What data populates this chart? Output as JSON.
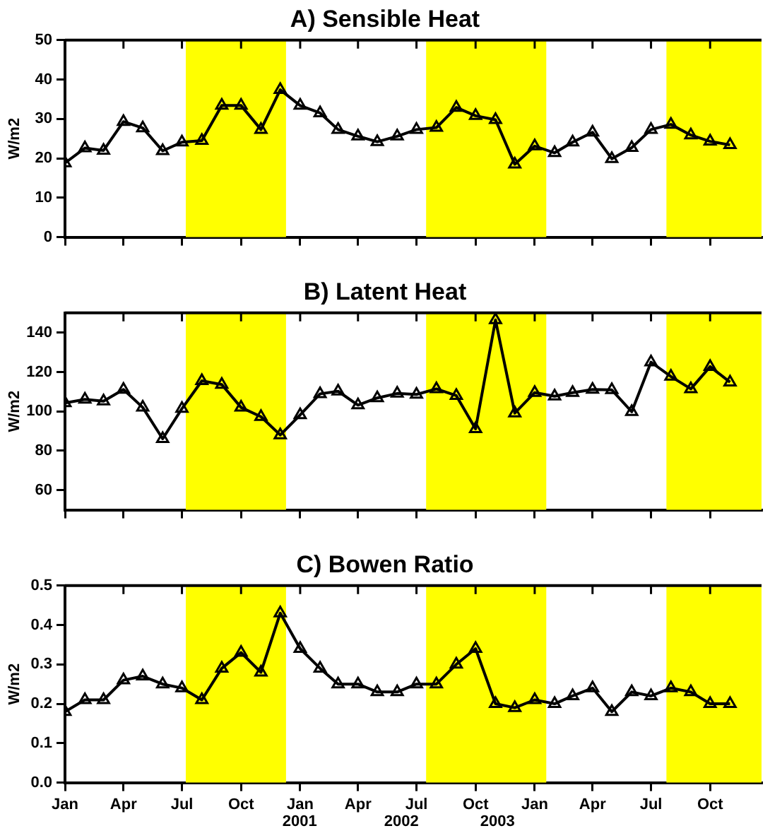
{
  "chart_data": [
    {
      "type": "line",
      "title": "A) Sensible Heat",
      "ylabel": "W/m2",
      "color": "#000000",
      "marker": "triangle",
      "line_style": "solid",
      "grid": false,
      "legend": false,
      "tick_labels": "y",
      "x": [
        "2000-01",
        "2000-02",
        "2000-03",
        "2000-04",
        "2000-05",
        "2000-06",
        "2000-07",
        "2000-08",
        "2000-09",
        "2000-10",
        "2000-11",
        "2000-12",
        "2001-01",
        "2001-02",
        "2001-03",
        "2001-04",
        "2001-05",
        "2001-06",
        "2001-07",
        "2001-08",
        "2001-09",
        "2001-10",
        "2001-11",
        "2001-12",
        "2002-01",
        "2002-02",
        "2002-03",
        "2002-04",
        "2002-05",
        "2002-06",
        "2002-07",
        "2002-08",
        "2002-09",
        "2002-10",
        "2002-11"
      ],
      "values": [
        18.8,
        22.6,
        22.0,
        29.3,
        27.7,
        21.9,
        24.1,
        24.5,
        33.4,
        33.4,
        27.3,
        37.4,
        33.4,
        31.5,
        27.3,
        25.6,
        24.2,
        25.6,
        27.3,
        27.8,
        32.9,
        30.8,
        29.8,
        18.5,
        23.1,
        21.4,
        24.1,
        26.6,
        19.9,
        22.7,
        27.3,
        28.6,
        25.9,
        24.3,
        23.4
      ],
      "xlim": [
        "2000-01",
        "2002-12-20"
      ],
      "xticks": [
        {
          "value": "2000-01",
          "label": null
        },
        {
          "value": "2000-04",
          "label": null
        },
        {
          "value": "2000-07",
          "label": null
        },
        {
          "value": "2000-10",
          "label": null
        },
        {
          "value": "2001-01",
          "label": null
        },
        {
          "value": "2001-04",
          "label": null
        },
        {
          "value": "2001-07",
          "label": null
        },
        {
          "value": "2001-10",
          "label": null
        },
        {
          "value": "2002-01",
          "label": null
        },
        {
          "value": "2002-04",
          "label": null
        },
        {
          "value": "2002-07",
          "label": null
        },
        {
          "value": "2002-10",
          "label": null
        }
      ],
      "ylim": [
        0,
        50
      ],
      "yticks": [
        0,
        10,
        20,
        30,
        40,
        50
      ],
      "bands": [
        {
          "axis": "x",
          "from": "2000-07-07",
          "to": "2000-12-10",
          "color": "#ffff00"
        },
        {
          "axis": "x",
          "from": "2001-07-16",
          "to": "2002-01-19",
          "color": "#ffff00"
        },
        {
          "axis": "x",
          "from": "2002-07-25",
          "to": "2002-12-20",
          "color": "#ffff00"
        }
      ]
    },
    {
      "type": "line",
      "title": "B) Latent Heat",
      "ylabel": "W/m2",
      "color": "#000000",
      "marker": "triangle",
      "line_style": "solid",
      "grid": false,
      "legend": false,
      "tick_labels": "y",
      "x": [
        "2000-01",
        "2000-02",
        "2000-03",
        "2000-04",
        "2000-05",
        "2000-06",
        "2000-07",
        "2000-08",
        "2000-09",
        "2000-10",
        "2000-11",
        "2000-12",
        "2001-01",
        "2001-02",
        "2001-03",
        "2001-04",
        "2001-05",
        "2001-06",
        "2001-07",
        "2001-08",
        "2001-09",
        "2001-10",
        "2001-11",
        "2001-12",
        "2002-01",
        "2002-02",
        "2002-03",
        "2002-04",
        "2002-05",
        "2002-06",
        "2002-07",
        "2002-08",
        "2002-09",
        "2002-10",
        "2002-11"
      ],
      "values": [
        104.3,
        106.1,
        105.2,
        111.1,
        102.0,
        86.1,
        101.4,
        115.5,
        113.6,
        102.0,
        97.3,
        88.0,
        98.2,
        108.9,
        110.2,
        103.2,
        106.8,
        109.1,
        108.6,
        111.4,
        108.0,
        91.1,
        146.4,
        99.1,
        109.5,
        107.7,
        109.5,
        111.1,
        110.9,
        99.8,
        125.0,
        117.7,
        111.4,
        122.7,
        114.8
      ],
      "xlim": [
        "2000-01",
        "2002-12-20"
      ],
      "xticks": [
        {
          "value": "2000-01",
          "label": null
        },
        {
          "value": "2000-04",
          "label": null
        },
        {
          "value": "2000-07",
          "label": null
        },
        {
          "value": "2000-10",
          "label": null
        },
        {
          "value": "2001-01",
          "label": null
        },
        {
          "value": "2001-04",
          "label": null
        },
        {
          "value": "2001-07",
          "label": null
        },
        {
          "value": "2001-10",
          "label": null
        },
        {
          "value": "2002-01",
          "label": null
        },
        {
          "value": "2002-04",
          "label": null
        },
        {
          "value": "2002-07",
          "label": null
        },
        {
          "value": "2002-10",
          "label": null
        }
      ],
      "ylim": [
        50,
        150
      ],
      "yticks": [
        60,
        80,
        100,
        120,
        140
      ],
      "bands": [
        {
          "axis": "x",
          "from": "2000-07-07",
          "to": "2000-12-10",
          "color": "#ffff00"
        },
        {
          "axis": "x",
          "from": "2001-07-16",
          "to": "2002-01-19",
          "color": "#ffff00"
        },
        {
          "axis": "x",
          "from": "2002-07-25",
          "to": "2002-12-20",
          "color": "#ffff00"
        }
      ]
    },
    {
      "type": "line",
      "title": "C) Bowen Ratio",
      "ylabel": "W/m2",
      "color": "#000000",
      "marker": "triangle",
      "line_style": "solid",
      "grid": false,
      "legend": false,
      "x": [
        "2000-01",
        "2000-02",
        "2000-03",
        "2000-04",
        "2000-05",
        "2000-06",
        "2000-07",
        "2000-08",
        "2000-09",
        "2000-10",
        "2000-11",
        "2000-12",
        "2001-01",
        "2001-02",
        "2001-03",
        "2001-04",
        "2001-05",
        "2001-06",
        "2001-07",
        "2001-08",
        "2001-09",
        "2001-10",
        "2001-11",
        "2001-12",
        "2002-01",
        "2002-02",
        "2002-03",
        "2002-04",
        "2002-05",
        "2002-06",
        "2002-07",
        "2002-08",
        "2002-09",
        "2002-10",
        "2002-11"
      ],
      "values": [
        0.18,
        0.21,
        0.21,
        0.26,
        0.27,
        0.25,
        0.24,
        0.21,
        0.29,
        0.33,
        0.28,
        0.43,
        0.34,
        0.29,
        0.25,
        0.25,
        0.23,
        0.23,
        0.25,
        0.25,
        0.3,
        0.34,
        0.2,
        0.19,
        0.21,
        0.2,
        0.22,
        0.24,
        0.18,
        0.23,
        0.22,
        0.24,
        0.23,
        0.2,
        0.2
      ],
      "xlim": [
        "2000-01",
        "2002-12-20"
      ],
      "xticks": [
        {
          "value": "2000-01",
          "label": "Jan"
        },
        {
          "value": "2000-04",
          "label": "Apr"
        },
        {
          "value": "2000-07",
          "label": "Jul"
        },
        {
          "value": "2000-10",
          "label": "Oct"
        },
        {
          "value": "2001-01",
          "label": "Jan"
        },
        {
          "value": "2001-04",
          "label": "Apr"
        },
        {
          "value": "2001-07",
          "label": "Jul"
        },
        {
          "value": "2001-10",
          "label": "Oct"
        },
        {
          "value": "2002-01",
          "label": "Jan"
        },
        {
          "value": "2002-04",
          "label": "Apr"
        },
        {
          "value": "2002-07",
          "label": "Jul"
        },
        {
          "value": "2002-10",
          "label": "Oct"
        }
      ],
      "ylim": [
        0,
        0.5
      ],
      "yticks": [
        {
          "value": 0,
          "label": "0.0"
        },
        0.1,
        0.2,
        0.3,
        0.4,
        0.5
      ],
      "annotations": [
        "2001",
        "2002",
        "2003"
      ],
      "bands": [
        {
          "axis": "x",
          "from": "2000-07-07",
          "to": "2000-12-10",
          "color": "#ffff00"
        },
        {
          "axis": "x",
          "from": "2001-07-16",
          "to": "2002-01-19",
          "color": "#ffff00"
        },
        {
          "axis": "x",
          "from": "2002-07-25",
          "to": "2002-12-20",
          "color": "#ffff00"
        }
      ]
    }
  ]
}
